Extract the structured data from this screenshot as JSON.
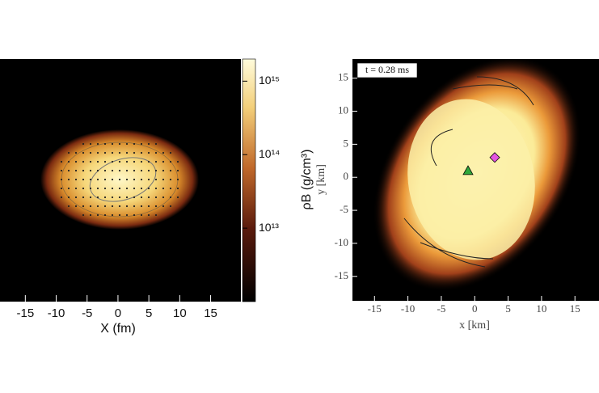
{
  "chart_data": [
    {
      "type": "heatmap",
      "xlabel": "X (fm)",
      "xlim": [
        -19.1,
        19.9
      ],
      "xticks": [
        -15,
        -10,
        -5,
        0,
        5,
        10,
        15
      ],
      "colorbar": {
        "label": "ρB (g/cm³)",
        "log": true,
        "lim": [
          1000000000000.0,
          2000000000000000.0
        ],
        "ticks": [
          {
            "value": 10000000000000.0,
            "label": "10¹³"
          },
          {
            "value": 100000000000000.0,
            "label": "10¹⁴"
          },
          {
            "value": 1000000000000000.0,
            "label": "10¹⁵"
          }
        ]
      }
    },
    {
      "type": "scatter",
      "annotation": "t = 0.28 ms",
      "xlabel": "x [km]",
      "ylabel": "y [km]",
      "xlim": [
        -18.3,
        18.6
      ],
      "ylim": [
        -18.7,
        17.9
      ],
      "xticks": [
        -15,
        -10,
        -5,
        0,
        5,
        10,
        15
      ],
      "yticks": [
        -15,
        -10,
        -5,
        0,
        5,
        10,
        15
      ],
      "x": [
        -1,
        3
      ],
      "values": [
        1,
        3
      ],
      "colors": [
        "#2fa83a",
        "#e455e0"
      ],
      "markers": [
        "triangle",
        "diamond"
      ]
    }
  ]
}
